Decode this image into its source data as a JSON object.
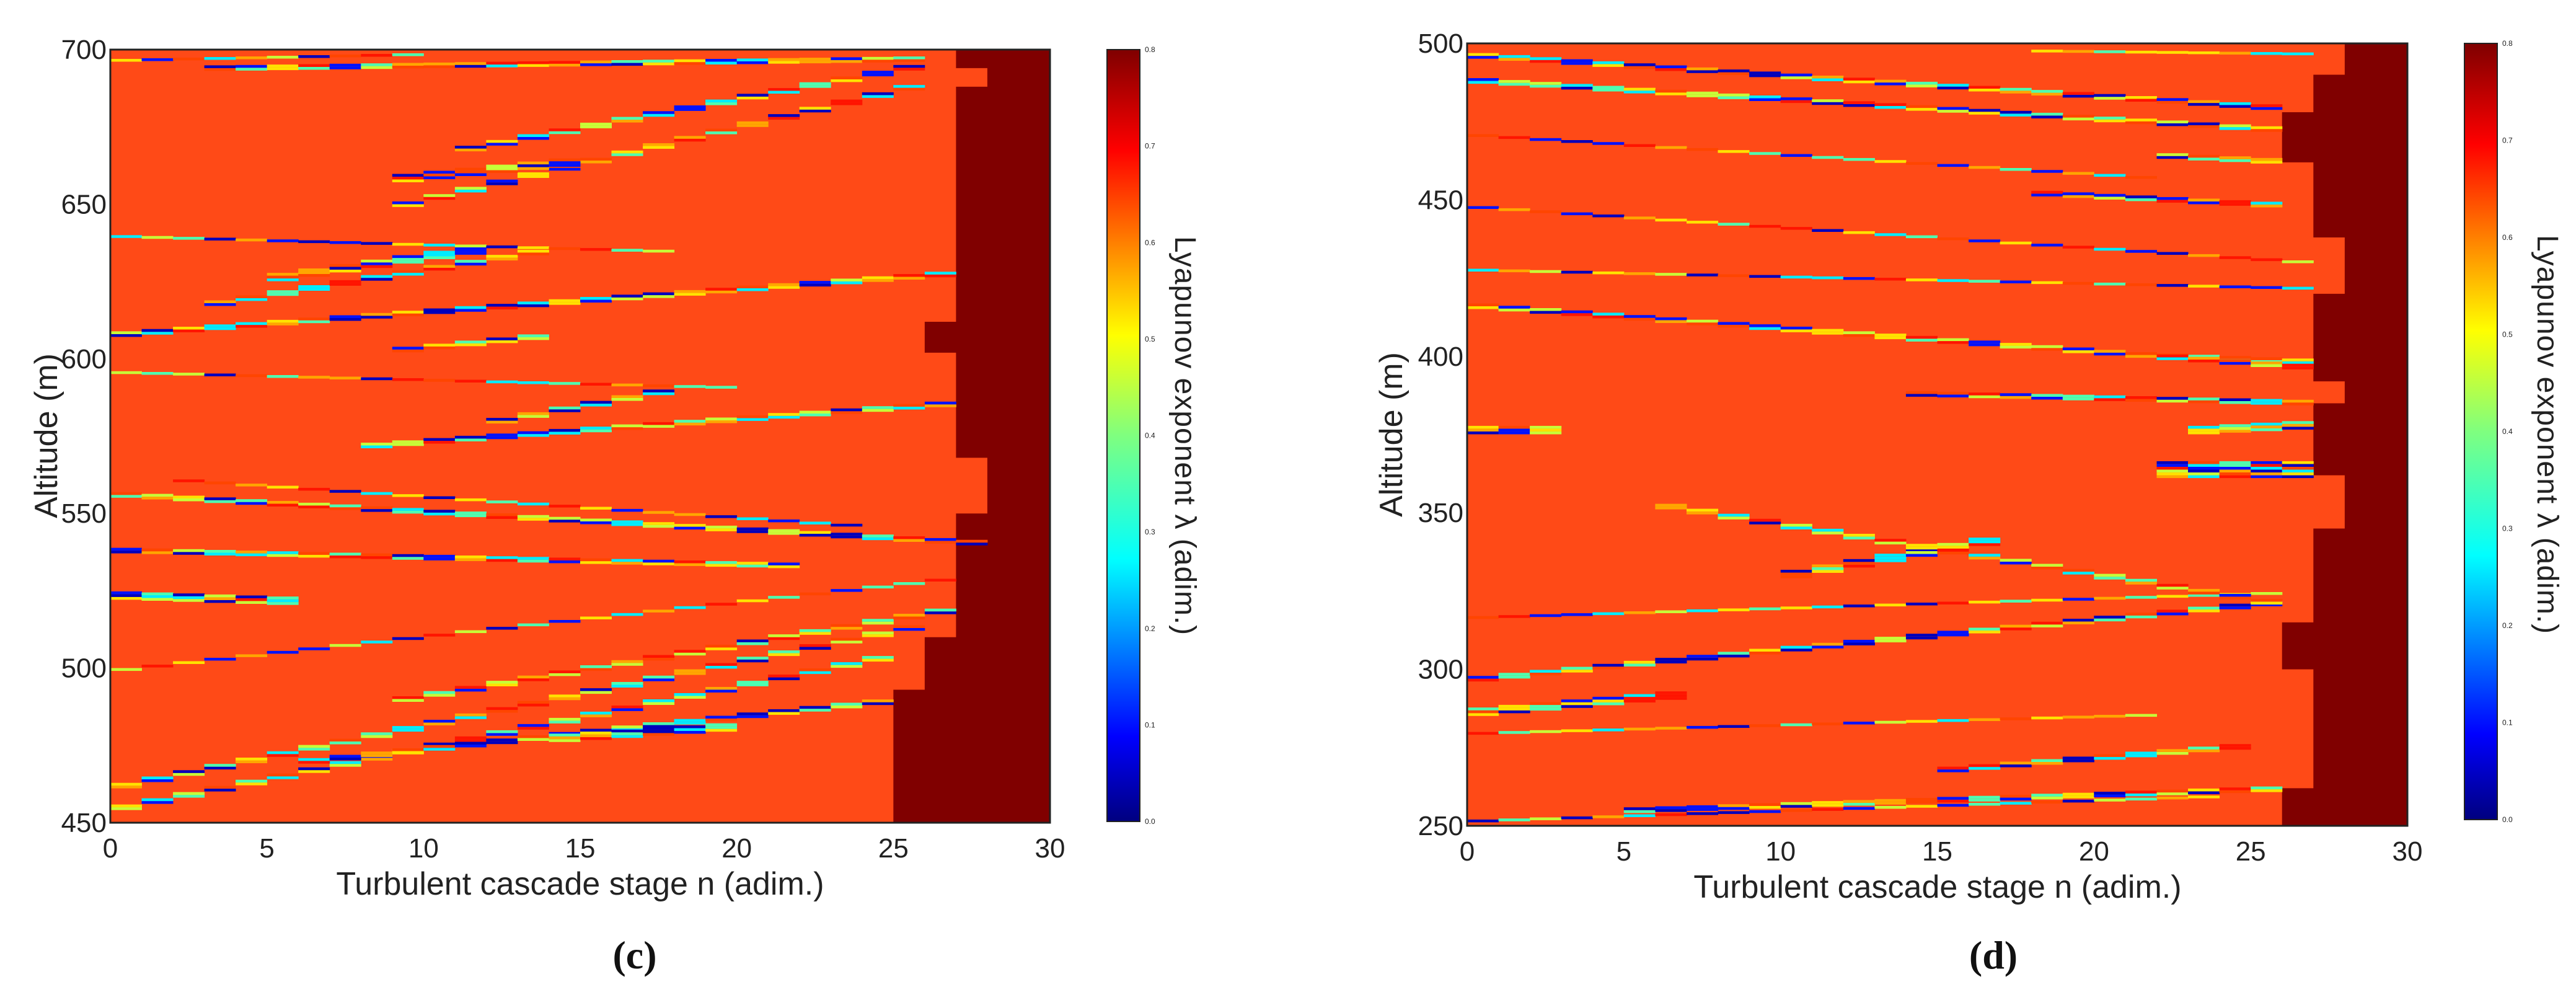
{
  "chart_data": [
    {
      "type": "heatmap",
      "panel_label": "(c)",
      "title": "",
      "xlabel": "Turbulent cascade stage n (adim.)",
      "ylabel": "Altitude (m)",
      "xlim": [
        0,
        30
      ],
      "ylim": [
        450,
        700
      ],
      "xticks": [
        "0",
        "5",
        "10",
        "15",
        "20",
        "25",
        "30"
      ],
      "yticks": [
        "450",
        "500",
        "550",
        "600",
        "650",
        "700"
      ],
      "colorbar": {
        "label": "Lyapunov exponent λ (adim.)",
        "range": [
          0.0,
          0.8
        ],
        "ticks": [
          "0.0",
          "0.1",
          "0.2",
          "0.3",
          "0.4",
          "0.5",
          "0.6",
          "0.7",
          "0.8"
        ],
        "colormap": "jet"
      },
      "background_value": 0.65,
      "saturated_value": 0.8,
      "saturated_boundary": [
        [
          450,
          25
        ],
        [
          493,
          25
        ],
        [
          493,
          26
        ],
        [
          510,
          26
        ],
        [
          510,
          27
        ],
        [
          550,
          27
        ],
        [
          550,
          28
        ],
        [
          568,
          28
        ],
        [
          568,
          27
        ],
        [
          602,
          27
        ],
        [
          602,
          26
        ],
        [
          612,
          26
        ],
        [
          612,
          27
        ],
        [
          688,
          27
        ],
        [
          688,
          28
        ],
        [
          694,
          28
        ],
        [
          694,
          27
        ],
        [
          700,
          27
        ]
      ],
      "streaks": [
        {
          "alt_start": 455,
          "alt_end": 505,
          "n_start": 0,
          "n_end": 25,
          "thickness": 2.0
        },
        {
          "alt_start": 462,
          "alt_end": 515,
          "n_start": 0,
          "n_end": 26,
          "thickness": 1.6
        },
        {
          "alt_start": 470,
          "alt_end": 490,
          "n_start": 6,
          "n_end": 25,
          "thickness": 1.5
        },
        {
          "alt_start": 477,
          "alt_end": 481,
          "n_start": 14,
          "n_end": 20,
          "thickness": 3.0
        },
        {
          "alt_start": 490,
          "alt_end": 520,
          "n_start": 9,
          "n_end": 27,
          "thickness": 1.6
        },
        {
          "alt_start": 500,
          "alt_end": 530,
          "n_start": 0,
          "n_end": 27,
          "thickness": 1.4
        },
        {
          "alt_start": 523,
          "alt_end": 521,
          "n_start": 0,
          "n_end": 6,
          "thickness": 3.2
        },
        {
          "alt_start": 538,
          "alt_end": 533,
          "n_start": 0,
          "n_end": 22,
          "thickness": 1.6
        },
        {
          "alt_start": 556,
          "alt_end": 540,
          "n_start": 0,
          "n_end": 28,
          "thickness": 1.8
        },
        {
          "alt_start": 561,
          "alt_end": 546,
          "n_start": 2,
          "n_end": 24,
          "thickness": 1.4
        },
        {
          "alt_start": 572,
          "alt_end": 586,
          "n_start": 8,
          "n_end": 27,
          "thickness": 1.8
        },
        {
          "alt_start": 580,
          "alt_end": 591,
          "n_start": 12,
          "n_end": 18,
          "thickness": 2.2
        },
        {
          "alt_start": 596,
          "alt_end": 591,
          "n_start": 0,
          "n_end": 20,
          "thickness": 1.4
        },
        {
          "alt_start": 603,
          "alt_end": 608,
          "n_start": 9,
          "n_end": 14,
          "thickness": 2.4
        },
        {
          "alt_start": 608,
          "alt_end": 628,
          "n_start": 0,
          "n_end": 27,
          "thickness": 1.6
        },
        {
          "alt_start": 618,
          "alt_end": 636,
          "n_start": 3,
          "n_end": 14,
          "thickness": 2.4
        },
        {
          "alt_start": 626,
          "alt_end": 636,
          "n_start": 5,
          "n_end": 12,
          "thickness": 2.8
        },
        {
          "alt_start": 640,
          "alt_end": 635,
          "n_start": 0,
          "n_end": 18,
          "thickness": 1.4
        },
        {
          "alt_start": 650,
          "alt_end": 690,
          "n_start": 9,
          "n_end": 26,
          "thickness": 2.2
        },
        {
          "alt_start": 658,
          "alt_end": 664,
          "n_start": 9,
          "n_end": 15,
          "thickness": 3.0
        },
        {
          "alt_start": 668,
          "alt_end": 696,
          "n_start": 11,
          "n_end": 26,
          "thickness": 1.6
        },
        {
          "alt_start": 694,
          "alt_end": 697,
          "n_start": 3,
          "n_end": 26,
          "thickness": 1.6
        },
        {
          "alt_start": 697,
          "alt_end": 699,
          "n_start": 0,
          "n_end": 10,
          "thickness": 1.2
        }
      ]
    },
    {
      "type": "heatmap",
      "panel_label": "(d)",
      "title": "",
      "xlabel": "Turbulent cascade stage n (adim.)",
      "ylabel": "Altitude (m)",
      "xlim": [
        0,
        30
      ],
      "ylim": [
        250,
        500
      ],
      "xticks": [
        "0",
        "5",
        "10",
        "15",
        "20",
        "25",
        "30"
      ],
      "yticks": [
        "250",
        "300",
        "350",
        "400",
        "450",
        "500"
      ],
      "colorbar": {
        "label": "Lyapunov exponent λ (adim.)",
        "range": [
          0.0,
          0.8
        ],
        "ticks": [
          "0.0",
          "0.1",
          "0.2",
          "0.3",
          "0.4",
          "0.5",
          "0.6",
          "0.7",
          "0.8"
        ],
        "colormap": "jet"
      },
      "background_value": 0.65,
      "saturated_value": 0.8,
      "saturated_boundary": [
        [
          250,
          26
        ],
        [
          262,
          26
        ],
        [
          262,
          27
        ],
        [
          300,
          27
        ],
        [
          300,
          26
        ],
        [
          315,
          26
        ],
        [
          315,
          27
        ],
        [
          345,
          27
        ],
        [
          345,
          28
        ],
        [
          362,
          28
        ],
        [
          362,
          27
        ],
        [
          385,
          27
        ],
        [
          385,
          28
        ],
        [
          392,
          28
        ],
        [
          392,
          27
        ],
        [
          420,
          27
        ],
        [
          420,
          28
        ],
        [
          438,
          28
        ],
        [
          438,
          27
        ],
        [
          462,
          27
        ],
        [
          462,
          26
        ],
        [
          478,
          26
        ],
        [
          478,
          27
        ],
        [
          490,
          27
        ],
        [
          490,
          28
        ],
        [
          500,
          28
        ]
      ],
      "streaks": [
        {
          "alt_start": 252,
          "alt_end": 260,
          "n_start": 0,
          "n_end": 24,
          "thickness": 1.4
        },
        {
          "alt_start": 255,
          "alt_end": 262,
          "n_start": 5,
          "n_end": 26,
          "thickness": 1.6
        },
        {
          "alt_start": 268,
          "alt_end": 276,
          "n_start": 15,
          "n_end": 25,
          "thickness": 2.2
        },
        {
          "alt_start": 280,
          "alt_end": 286,
          "n_start": 0,
          "n_end": 22,
          "thickness": 1.4
        },
        {
          "alt_start": 286,
          "alt_end": 292,
          "n_start": 0,
          "n_end": 7,
          "thickness": 2.6
        },
        {
          "alt_start": 297,
          "alt_end": 322,
          "n_start": 0,
          "n_end": 26,
          "thickness": 2.0
        },
        {
          "alt_start": 317,
          "alt_end": 325,
          "n_start": 0,
          "n_end": 26,
          "thickness": 1.4
        },
        {
          "alt_start": 330,
          "alt_end": 342,
          "n_start": 10,
          "n_end": 17,
          "thickness": 2.6
        },
        {
          "alt_start": 352,
          "alt_end": 320,
          "n_start": 6,
          "n_end": 26,
          "thickness": 1.8
        },
        {
          "alt_start": 362,
          "alt_end": 362,
          "n_start": 22,
          "n_end": 27,
          "thickness": 6.0
        },
        {
          "alt_start": 376,
          "alt_end": 376,
          "n_start": 0,
          "n_end": 3,
          "thickness": 2.6
        },
        {
          "alt_start": 376,
          "alt_end": 378,
          "n_start": 23,
          "n_end": 27,
          "thickness": 3.2
        },
        {
          "alt_start": 388,
          "alt_end": 385,
          "n_start": 14,
          "n_end": 27,
          "thickness": 1.6
        },
        {
          "alt_start": 400,
          "alt_end": 398,
          "n_start": 22,
          "n_end": 27,
          "thickness": 2.4
        },
        {
          "alt_start": 416,
          "alt_end": 396,
          "n_start": 0,
          "n_end": 27,
          "thickness": 1.6
        },
        {
          "alt_start": 428,
          "alt_end": 422,
          "n_start": 0,
          "n_end": 27,
          "thickness": 1.4
        },
        {
          "alt_start": 448,
          "alt_end": 430,
          "n_start": 0,
          "n_end": 27,
          "thickness": 1.4
        },
        {
          "alt_start": 452,
          "alt_end": 448,
          "n_start": 18,
          "n_end": 26,
          "thickness": 1.8
        },
        {
          "alt_start": 464,
          "alt_end": 462,
          "n_start": 22,
          "n_end": 26,
          "thickness": 2.4
        },
        {
          "alt_start": 471,
          "alt_end": 457,
          "n_start": 0,
          "n_end": 22,
          "thickness": 1.4
        },
        {
          "alt_start": 488,
          "alt_end": 472,
          "n_start": 0,
          "n_end": 26,
          "thickness": 1.6
        },
        {
          "alt_start": 496,
          "alt_end": 479,
          "n_start": 0,
          "n_end": 26,
          "thickness": 1.6
        },
        {
          "alt_start": 498,
          "alt_end": 497,
          "n_start": 18,
          "n_end": 27,
          "thickness": 1.2
        }
      ]
    }
  ]
}
